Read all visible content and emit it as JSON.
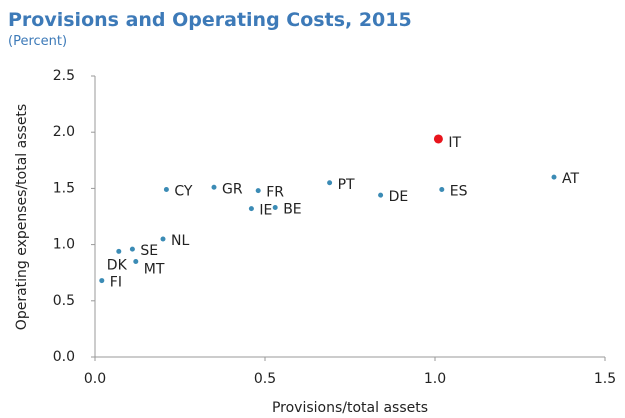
{
  "chart_data": {
    "type": "scatter",
    "title": "Provisions and Operating Costs, 2015",
    "subtitle": "(Percent)",
    "x_label": "Provisions/total assets",
    "y_label": "Operating expenses/total assets",
    "labels": [
      "FI",
      "DK",
      "SE",
      "MT",
      "NL",
      "CY",
      "GR",
      "FR",
      "IE",
      "BE",
      "PT",
      "DE",
      "IT",
      "ES",
      "AT"
    ],
    "x": [
      0.02,
      0.07,
      0.11,
      0.12,
      0.2,
      0.21,
      0.35,
      0.48,
      0.46,
      0.53,
      0.69,
      0.84,
      1.01,
      1.02,
      1.35
    ],
    "y": [
      0.68,
      0.94,
      0.96,
      0.85,
      1.05,
      1.49,
      1.51,
      1.48,
      1.32,
      1.33,
      1.55,
      1.44,
      1.94,
      1.49,
      1.6
    ],
    "colors": [
      "#3b8bb5",
      "#3b8bb5",
      "#3b8bb5",
      "#3b8bb5",
      "#3b8bb5",
      "#3b8bb5",
      "#3b8bb5",
      "#3b8bb5",
      "#3b8bb5",
      "#3b8bb5",
      "#3b8bb5",
      "#3b8bb5",
      "#e8141c",
      "#3b8bb5",
      "#3b8bb5"
    ],
    "xlim": [
      0,
      1.5
    ],
    "xticks": [
      {
        "value": 0,
        "label": "0.0"
      },
      0.5,
      {
        "value": 1,
        "label": "1.0"
      },
      1.5
    ],
    "ylim": [
      0,
      2.5
    ],
    "yticks": [
      {
        "value": 0,
        "label": "0.0"
      },
      0.5,
      {
        "value": 1,
        "label": "1.0"
      },
      1.5,
      {
        "value": 2,
        "label": "2.0"
      },
      2.5
    ],
    "grid": false
  }
}
